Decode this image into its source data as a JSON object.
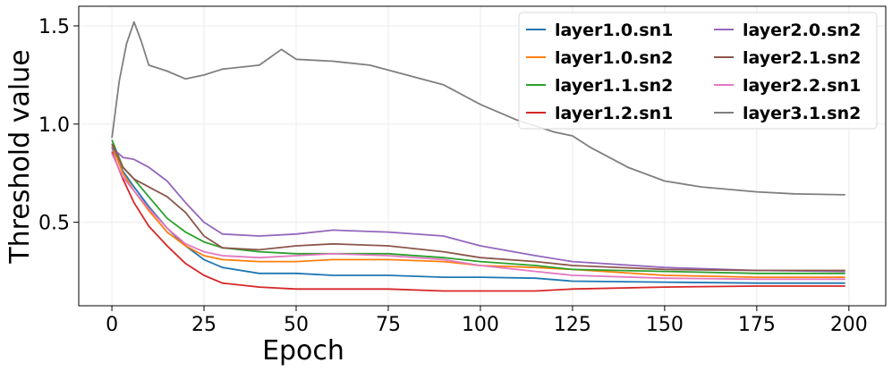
{
  "chart_data": {
    "type": "line",
    "title": "",
    "xlabel": "Epoch",
    "ylabel": "Threshold value",
    "xlim": [
      -9,
      210
    ],
    "ylim": [
      0.075,
      1.6
    ],
    "xticks": [
      0,
      25,
      50,
      75,
      100,
      125,
      150,
      175,
      200
    ],
    "xtick_labels": [
      "0",
      "25",
      "50",
      "75",
      "100",
      "125",
      "150",
      "175",
      "200"
    ],
    "yticks": [
      0.5,
      1.0,
      1.5
    ],
    "ytick_labels": [
      "0.5",
      "1.0",
      "1.5"
    ],
    "grid": true,
    "legend": {
      "position": "top-right",
      "columns": 2
    },
    "series": [
      {
        "name": "layer1.0.sn1",
        "color": "#1f77b4",
        "x": [
          0,
          3,
          6,
          10,
          15,
          20,
          25,
          30,
          40,
          50,
          60,
          75,
          90,
          100,
          115,
          125,
          150,
          175,
          199
        ],
        "y": [
          0.88,
          0.76,
          0.68,
          0.58,
          0.47,
          0.38,
          0.31,
          0.27,
          0.24,
          0.24,
          0.23,
          0.23,
          0.22,
          0.22,
          0.215,
          0.2,
          0.195,
          0.19,
          0.19
        ]
      },
      {
        "name": "layer1.0.sn2",
        "color": "#ff7f0e",
        "x": [
          0,
          3,
          6,
          10,
          15,
          20,
          25,
          30,
          40,
          50,
          60,
          75,
          90,
          100,
          115,
          125,
          150,
          175,
          199
        ],
        "y": [
          0.89,
          0.75,
          0.66,
          0.56,
          0.45,
          0.38,
          0.33,
          0.31,
          0.3,
          0.3,
          0.31,
          0.31,
          0.3,
          0.28,
          0.27,
          0.26,
          0.23,
          0.22,
          0.22
        ]
      },
      {
        "name": "layer1.1.sn2",
        "color": "#2ca02c",
        "x": [
          0,
          3,
          6,
          10,
          15,
          20,
          25,
          30,
          40,
          50,
          60,
          75,
          90,
          100,
          115,
          125,
          150,
          175,
          199
        ],
        "y": [
          0.92,
          0.78,
          0.72,
          0.63,
          0.52,
          0.45,
          0.4,
          0.37,
          0.35,
          0.34,
          0.34,
          0.34,
          0.32,
          0.3,
          0.28,
          0.26,
          0.25,
          0.24,
          0.24
        ]
      },
      {
        "name": "layer1.2.sn1",
        "color": "#d62728",
        "x": [
          0,
          3,
          6,
          10,
          15,
          20,
          25,
          30,
          40,
          50,
          60,
          75,
          90,
          100,
          115,
          125,
          150,
          175,
          199
        ],
        "y": [
          0.86,
          0.72,
          0.6,
          0.48,
          0.38,
          0.29,
          0.23,
          0.19,
          0.17,
          0.16,
          0.16,
          0.16,
          0.15,
          0.15,
          0.15,
          0.16,
          0.17,
          0.175,
          0.175
        ]
      },
      {
        "name": "layer2.0.sn2",
        "color": "#9467bd",
        "x": [
          0,
          3,
          6,
          10,
          15,
          20,
          25,
          30,
          40,
          50,
          60,
          75,
          90,
          100,
          115,
          125,
          150,
          175,
          199
        ],
        "y": [
          0.88,
          0.83,
          0.82,
          0.78,
          0.71,
          0.6,
          0.5,
          0.44,
          0.43,
          0.44,
          0.46,
          0.45,
          0.43,
          0.38,
          0.33,
          0.3,
          0.27,
          0.255,
          0.25
        ]
      },
      {
        "name": "layer2.1.sn2",
        "color": "#8c564b",
        "x": [
          0,
          3,
          6,
          10,
          15,
          20,
          25,
          30,
          40,
          50,
          60,
          75,
          90,
          100,
          115,
          125,
          150,
          175,
          199
        ],
        "y": [
          0.9,
          0.78,
          0.72,
          0.68,
          0.63,
          0.55,
          0.43,
          0.37,
          0.36,
          0.38,
          0.39,
          0.38,
          0.35,
          0.32,
          0.3,
          0.28,
          0.26,
          0.255,
          0.255
        ]
      },
      {
        "name": "layer2.2.sn1",
        "color": "#e377c2",
        "x": [
          0,
          3,
          6,
          10,
          15,
          20,
          25,
          30,
          40,
          50,
          60,
          75,
          90,
          100,
          115,
          125,
          150,
          175,
          199
        ],
        "y": [
          0.85,
          0.73,
          0.66,
          0.57,
          0.47,
          0.39,
          0.35,
          0.33,
          0.32,
          0.33,
          0.34,
          0.33,
          0.31,
          0.28,
          0.25,
          0.23,
          0.215,
          0.21,
          0.21
        ]
      },
      {
        "name": "layer3.1.sn2",
        "color": "#7f7f7f",
        "x": [
          0,
          2,
          4,
          6,
          8,
          10,
          15,
          20,
          25,
          30,
          40,
          46,
          50,
          60,
          70,
          80,
          90,
          100,
          110,
          115,
          120,
          125,
          130,
          140,
          150,
          160,
          175,
          185,
          199
        ],
        "y": [
          0.93,
          1.22,
          1.41,
          1.52,
          1.42,
          1.3,
          1.27,
          1.23,
          1.25,
          1.28,
          1.3,
          1.38,
          1.33,
          1.32,
          1.3,
          1.25,
          1.2,
          1.1,
          1.02,
          0.99,
          0.96,
          0.94,
          0.88,
          0.78,
          0.71,
          0.68,
          0.655,
          0.645,
          0.64
        ]
      }
    ]
  }
}
